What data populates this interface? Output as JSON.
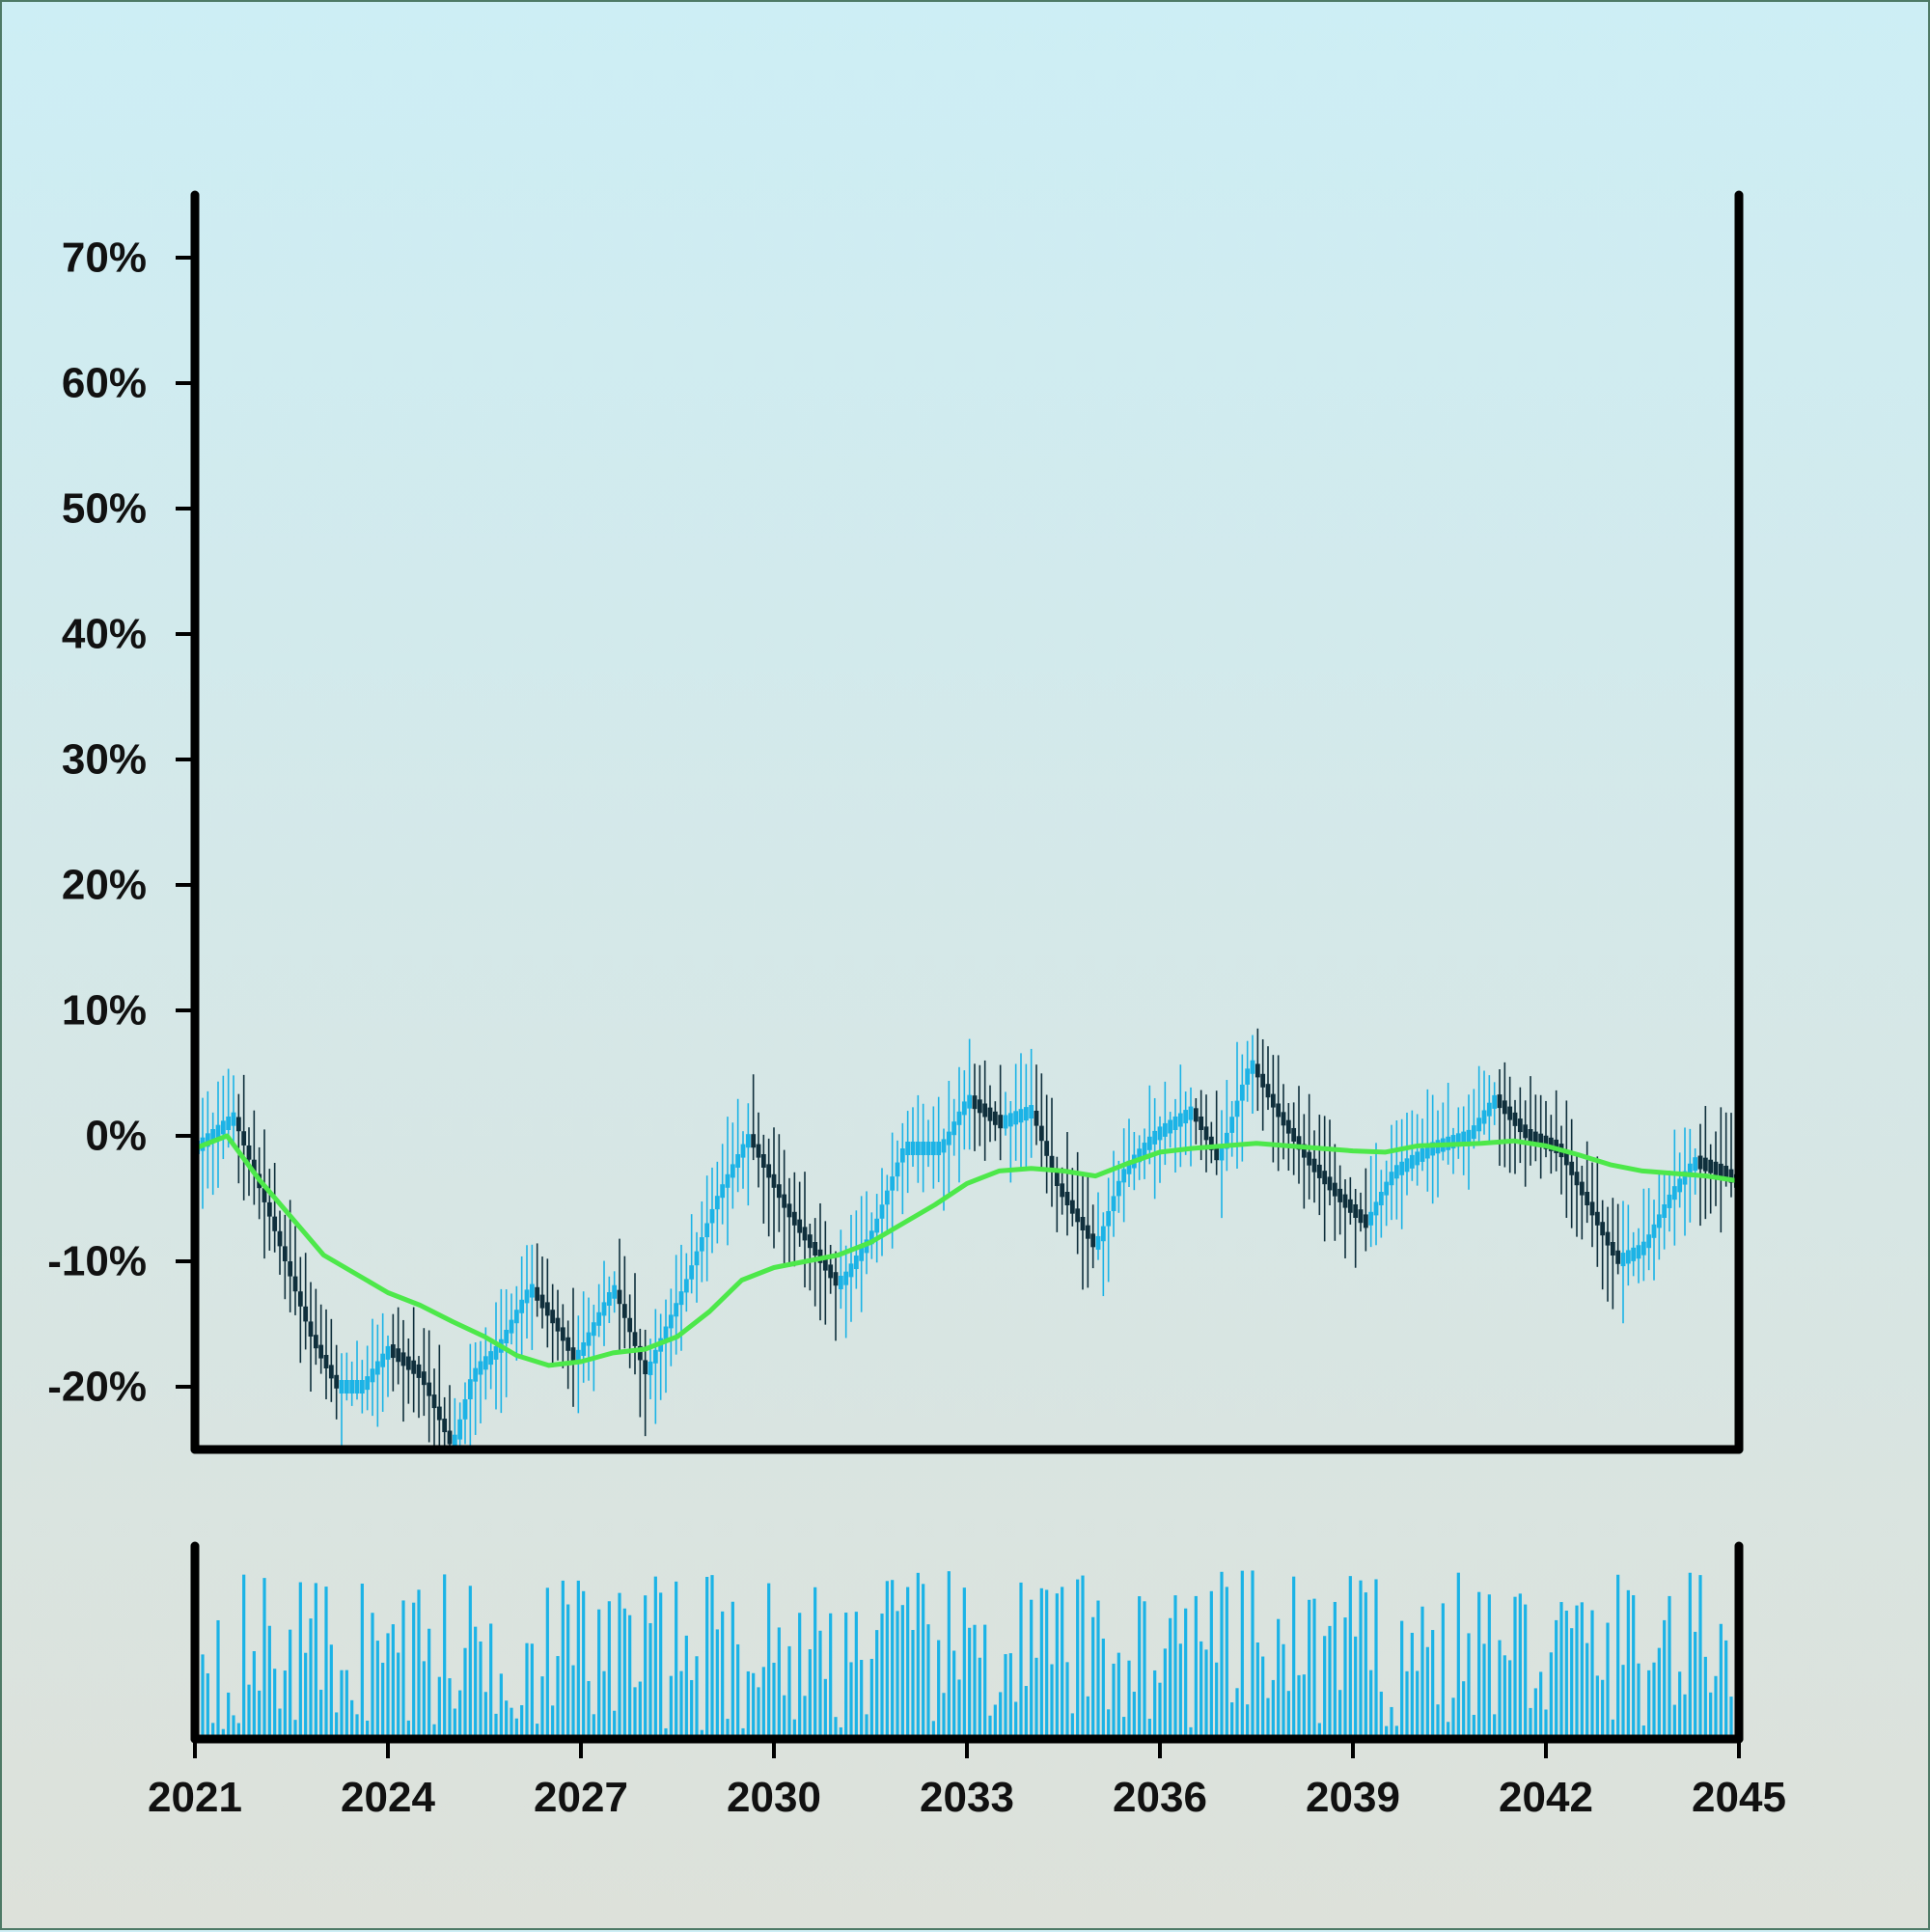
{
  "chart_data": {
    "type": "candlestick",
    "x_axis": {
      "range": [
        2021,
        2045
      ],
      "tick_labels": [
        "2021",
        "2024",
        "2027",
        "2030",
        "2033",
        "2036",
        "2039",
        "2042",
        "2045"
      ]
    },
    "y_axis": {
      "range": [
        -25,
        75
      ],
      "unit": "%",
      "tick_labels": [
        "-20%",
        "-10%",
        "0%",
        "10%",
        "20%",
        "30%",
        "40%",
        "50%",
        "60%",
        "70%"
      ]
    },
    "grid": false,
    "colors": {
      "up": "#1bb3e6",
      "down": "#0f2f3c",
      "moving_average": "#4de84a",
      "volume": "#1bb3e6",
      "axis": "#000000"
    },
    "trend_anchors": [
      [
        2021.0,
        -1
      ],
      [
        2021.6,
        1.5
      ],
      [
        2022.2,
        -7
      ],
      [
        2022.8,
        -16
      ],
      [
        2023.2,
        -20
      ],
      [
        2023.6,
        -20
      ],
      [
        2024.0,
        -17
      ],
      [
        2024.5,
        -19
      ],
      [
        2025.0,
        -25
      ],
      [
        2025.3,
        -19
      ],
      [
        2025.7,
        -17
      ],
      [
        2026.2,
        -12
      ],
      [
        2026.6,
        -15
      ],
      [
        2026.9,
        -18
      ],
      [
        2027.5,
        -12
      ],
      [
        2028.0,
        -19
      ],
      [
        2028.6,
        -12
      ],
      [
        2029.1,
        -5
      ],
      [
        2029.6,
        0
      ],
      [
        2030.2,
        -6
      ],
      [
        2031.0,
        -12
      ],
      [
        2031.5,
        -8
      ],
      [
        2032.0,
        -1
      ],
      [
        2032.6,
        -1
      ],
      [
        2033.0,
        3
      ],
      [
        2033.5,
        1
      ],
      [
        2034.0,
        2
      ],
      [
        2034.4,
        -4
      ],
      [
        2035.0,
        -9
      ],
      [
        2035.4,
        -3
      ],
      [
        2035.9,
        0
      ],
      [
        2036.5,
        2
      ],
      [
        2036.9,
        -2
      ],
      [
        2037.4,
        6
      ],
      [
        2037.8,
        2
      ],
      [
        2038.3,
        -2
      ],
      [
        2038.8,
        -5
      ],
      [
        2039.2,
        -7
      ],
      [
        2039.6,
        -3
      ],
      [
        2040.2,
        -1
      ],
      [
        2040.8,
        0
      ],
      [
        2041.2,
        3
      ],
      [
        2041.7,
        0
      ],
      [
        2042.2,
        -1
      ],
      [
        2042.6,
        -5
      ],
      [
        2043.1,
        -10
      ],
      [
        2043.5,
        -9
      ],
      [
        2043.9,
        -5
      ],
      [
        2044.3,
        -2
      ],
      [
        2044.8,
        -3
      ],
      [
        2045.0,
        -4
      ]
    ],
    "moving_average": [
      [
        2021.0,
        -1
      ],
      [
        2021.5,
        0
      ],
      [
        2022.0,
        -3.5
      ],
      [
        2022.5,
        -6.5
      ],
      [
        2023.0,
        -9.5
      ],
      [
        2023.5,
        -11
      ],
      [
        2024.0,
        -12.5
      ],
      [
        2024.5,
        -13.5
      ],
      [
        2025.0,
        -14.8
      ],
      [
        2025.5,
        -16
      ],
      [
        2026.0,
        -17.5
      ],
      [
        2026.5,
        -18.3
      ],
      [
        2027.0,
        -18
      ],
      [
        2027.5,
        -17.3
      ],
      [
        2028.0,
        -17
      ],
      [
        2028.5,
        -16
      ],
      [
        2029.0,
        -14
      ],
      [
        2029.5,
        -11.5
      ],
      [
        2030.0,
        -10.5
      ],
      [
        2030.5,
        -10
      ],
      [
        2031.0,
        -9.5
      ],
      [
        2031.5,
        -8.5
      ],
      [
        2032.0,
        -7
      ],
      [
        2032.5,
        -5.5
      ],
      [
        2033.0,
        -3.8
      ],
      [
        2033.5,
        -2.8
      ],
      [
        2034.0,
        -2.6
      ],
      [
        2034.5,
        -2.8
      ],
      [
        2035.0,
        -3.2
      ],
      [
        2035.5,
        -2.2
      ],
      [
        2036.0,
        -1.3
      ],
      [
        2036.5,
        -1
      ],
      [
        2037.0,
        -0.8
      ],
      [
        2037.5,
        -0.6
      ],
      [
        2038.0,
        -0.8
      ],
      [
        2038.5,
        -1
      ],
      [
        2039.0,
        -1.2
      ],
      [
        2039.5,
        -1.3
      ],
      [
        2040.0,
        -0.8
      ],
      [
        2040.5,
        -0.7
      ],
      [
        2041.0,
        -0.6
      ],
      [
        2041.5,
        -0.4
      ],
      [
        2042.0,
        -0.8
      ],
      [
        2042.5,
        -1.5
      ],
      [
        2043.0,
        -2.3
      ],
      [
        2043.5,
        -2.8
      ],
      [
        2044.0,
        -3
      ],
      [
        2044.5,
        -3.2
      ],
      [
        2045.0,
        -3.6
      ]
    ],
    "volume_range": [
      0,
      1
    ]
  }
}
